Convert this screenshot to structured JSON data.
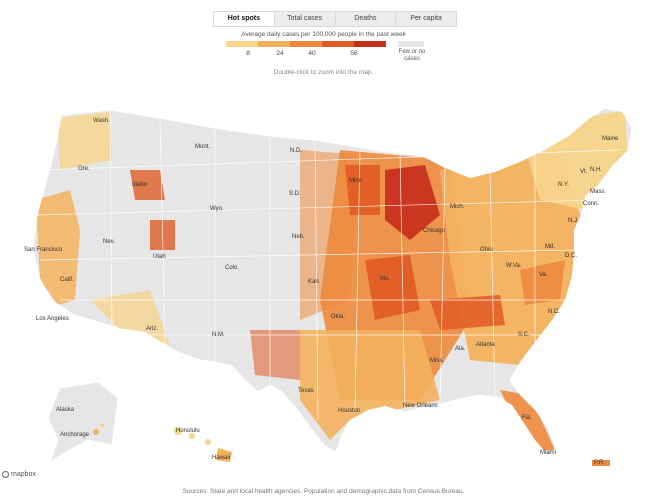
{
  "tabs": [
    {
      "label": "Hot spots",
      "active": true
    },
    {
      "label": "Total cases",
      "active": false
    },
    {
      "label": "Deaths",
      "active": false
    },
    {
      "label": "Per capita",
      "active": false
    }
  ],
  "legend": {
    "title": "Average daily cases per 100,000 people in the past week",
    "ticks": [
      "8",
      "24",
      "40",
      "56"
    ],
    "colors": [
      "#f7d48a",
      "#f3b15d",
      "#ee8a3c",
      "#e05b25",
      "#c8301e"
    ],
    "few_label": "Few or no cases",
    "few_color": "#e6e6e6"
  },
  "hint": "Double-click to zoom into the map.",
  "map_labels": {
    "wash": "Wash.",
    "mont": "Mont.",
    "nd": "N.D.",
    "minn": "Minn.",
    "ore": "Ore.",
    "idaho": "Idaho",
    "sd": "S.D.",
    "wyo": "Wyo.",
    "mich": "Mich.",
    "nev": "Nev.",
    "neb": "Neb.",
    "san_francisco": "San Francisco",
    "utah": "Utah",
    "chicago": "Chicago",
    "ohio": "Ohio",
    "colo": "Colo.",
    "kan": "Kan.",
    "calif": "Calif.",
    "mo": "Mo.",
    "los_angeles": "Los Angeles",
    "ariz": "Ariz.",
    "nm": "N.M.",
    "okla": "Okla.",
    "texas": "Texas",
    "houston": "Houston",
    "new_orleans": "New Orleans",
    "miss": "Miss.",
    "ala": "Ala.",
    "atlanta": "Atlanta",
    "sc": "S.C.",
    "nc": "N.C.",
    "va": "Va.",
    "wva": "W.Va.",
    "md": "Md.",
    "dc": "D.C.",
    "nj": "N.J.",
    "ny": "N.Y.",
    "mass": "Mass.",
    "conn": "Conn.",
    "vt": "Vt.",
    "nh": "N.H.",
    "maine": "Maine",
    "fla": "Fla.",
    "miami": "Miami",
    "alaska": "Alaska",
    "anchorage": "Anchorage",
    "honolulu": "Honolulu",
    "hawaii": "Hawaii",
    "pr": "P.R."
  },
  "logo_text": "mapbox",
  "footer": "Sources: State and local health agencies. Population and demographic data from Census Bureau."
}
